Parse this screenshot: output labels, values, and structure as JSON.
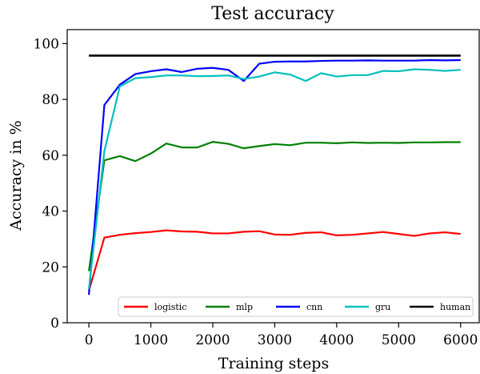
{
  "chart_data": {
    "type": "line",
    "title": "Test accuracy",
    "xlabel": "Training steps",
    "ylabel": "Accuracy in %",
    "xlim": [
      -350,
      6300
    ],
    "ylim": [
      0,
      105
    ],
    "xticks": [
      0,
      1000,
      2000,
      3000,
      4000,
      5000,
      6000
    ],
    "yticks": [
      0,
      20,
      40,
      60,
      80,
      100
    ],
    "grid": false,
    "legend_position": "bottom",
    "x": [
      0,
      250,
      500,
      750,
      1000,
      1250,
      1500,
      1750,
      2000,
      2250,
      2500,
      2750,
      3000,
      3250,
      3500,
      3750,
      4000,
      4250,
      4500,
      4750,
      5000,
      5250,
      5500,
      5750,
      6000
    ],
    "series": [
      {
        "name": "logistic",
        "color": "#ff0000",
        "values": [
          11.5,
          30.5,
          31.5,
          32.1,
          32.5,
          33.1,
          32.7,
          32.6,
          32.0,
          32.0,
          32.6,
          32.8,
          31.6,
          31.5,
          32.2,
          32.4,
          31.3,
          31.5,
          32.0,
          32.5,
          31.8,
          31.1,
          32.0,
          32.4,
          31.8
        ]
      },
      {
        "name": "mlp",
        "color": "#008000",
        "values": [
          18.5,
          58.2,
          59.7,
          57.9,
          60.6,
          64.2,
          62.8,
          62.8,
          64.8,
          64.1,
          62.5,
          63.3,
          64.0,
          63.6,
          64.5,
          64.5,
          64.3,
          64.6,
          64.4,
          64.5,
          64.4,
          64.6,
          64.6,
          64.7,
          64.7
        ]
      },
      {
        "name": "cnn",
        "color": "#0000ff",
        "values": [
          10.0,
          78.0,
          85.3,
          89.1,
          90.1,
          90.8,
          89.8,
          91.0,
          91.3,
          90.6,
          86.6,
          92.8,
          93.5,
          93.6,
          93.6,
          93.8,
          93.9,
          93.9,
          94.0,
          93.9,
          93.9,
          93.9,
          94.1,
          94.0,
          94.1
        ]
      },
      {
        "name": "gru",
        "color": "#00bfbf",
        "values": [
          12.0,
          61.5,
          84.7,
          87.6,
          88.0,
          88.6,
          88.6,
          88.3,
          88.4,
          88.6,
          87.3,
          88.2,
          89.7,
          88.9,
          86.6,
          89.4,
          88.2,
          88.7,
          88.7,
          90.2,
          90.1,
          90.8,
          90.6,
          90.2,
          90.6
        ]
      },
      {
        "name": "human",
        "color": "#000000",
        "values": [
          95.7,
          95.7,
          95.7,
          95.7,
          95.7,
          95.7,
          95.7,
          95.7,
          95.7,
          95.7,
          95.7,
          95.7,
          95.7,
          95.7,
          95.7,
          95.7,
          95.7,
          95.7,
          95.7,
          95.7,
          95.7,
          95.7,
          95.7,
          95.7,
          95.7
        ]
      }
    ]
  }
}
